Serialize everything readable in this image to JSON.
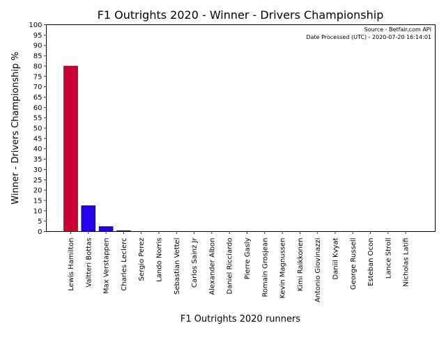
{
  "chart_data": {
    "type": "bar",
    "title": "F1 Outrights 2020 - Winner - Drivers Championship",
    "xlabel": "F1 Outrights 2020 runners",
    "ylabel": "Winner - Drivers Championship %",
    "ylim": [
      0,
      100
    ],
    "yticks": [
      0,
      5,
      10,
      15,
      20,
      25,
      30,
      35,
      40,
      45,
      50,
      55,
      60,
      65,
      70,
      75,
      80,
      85,
      90,
      95,
      100
    ],
    "grid": false,
    "annotations": [
      "Source - Betfair.com API",
      "Date Processed (UTC) - 2020-07-20 16:14:01"
    ],
    "categories": [
      "Lewis Hamilton",
      "Valtteri Bottas",
      "Max Verstappen",
      "Charles Leclerc",
      "Sergio Perez",
      "Lando Norris",
      "Sebastian Vettel",
      "Carlos Sainz Jr",
      "Alexander Albon",
      "Daniel Ricciardo",
      "Pierre Gasly",
      "Romain Grosjean",
      "Kevin Magnussen",
      "Kimi Raikkonen",
      "Antonio Giovinazzi",
      "Daniil Kvyat",
      "George Russell",
      "Esteban Ocon",
      "Lance Stroll",
      "Nicholas Latifi"
    ],
    "values": [
      80,
      12.5,
      2.4,
      0.4,
      0,
      0,
      0,
      0,
      0,
      0,
      0,
      0,
      0,
      0,
      0,
      0,
      0,
      0,
      0,
      0
    ],
    "colors": [
      "#cc0033",
      "#2200ee",
      "#2200ee",
      "#2200ee",
      "#2200ee",
      "#2200ee",
      "#2200ee",
      "#2200ee",
      "#2200ee",
      "#2200ee",
      "#2200ee",
      "#2200ee",
      "#2200ee",
      "#2200ee",
      "#2200ee",
      "#2200ee",
      "#2200ee",
      "#2200ee",
      "#2200ee",
      "#2200ee"
    ]
  }
}
